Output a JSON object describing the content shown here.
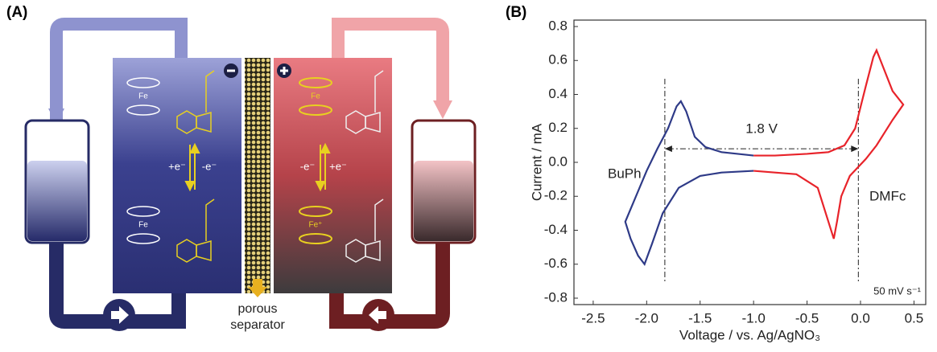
{
  "panel_a": {
    "label": "(A)",
    "left_cell": {
      "fe_top": "Fe",
      "fe_bottom": "Fe",
      "reduction": "+e⁻",
      "oxidation": "-e⁻"
    },
    "right_cell": {
      "fe_top": "Fe",
      "fe_bottom": "Fe⁺",
      "reduction": "-e⁻",
      "oxidation": "+e⁻"
    },
    "separator": [
      "porous",
      "separator"
    ]
  },
  "chart_data": {
    "type": "line",
    "panel_label": "(B)",
    "x_label": "Voltage / vs. Ag/AgNO₃",
    "y_label": "Current / mA",
    "xlim": [
      -2.68,
      0.61
    ],
    "ylim": [
      -0.8,
      0.8
    ],
    "xticks": [
      -2.5,
      {
        "value": -2,
        "label": "-2.0"
      },
      -1.5,
      {
        "value": -1,
        "label": "-1.0"
      },
      -0.5,
      {
        "value": 0,
        "label": "0.0"
      },
      0.5
    ],
    "yticks": [
      -0.8,
      -0.6,
      -0.4,
      -0.2,
      {
        "value": 0,
        "label": "0.0"
      },
      0.2,
      0.4,
      0.6,
      0.8
    ],
    "series": [
      {
        "color": "#2e3a87",
        "x": [
          -1.0,
          -1.3,
          -1.5,
          -1.7,
          -1.85,
          -1.95,
          -2.02,
          -2.08,
          -2.15,
          -2.2,
          -2.1,
          -2.0,
          -1.9,
          -1.8,
          -1.72,
          -1.68,
          -1.63,
          -1.55,
          -1.45,
          -1.3,
          -1.15,
          -1.0
        ],
        "values": [
          -0.05,
          -0.06,
          -0.08,
          -0.15,
          -0.3,
          -0.48,
          -0.6,
          -0.55,
          -0.45,
          -0.35,
          -0.2,
          -0.05,
          0.08,
          0.2,
          0.33,
          0.36,
          0.3,
          0.15,
          0.09,
          0.06,
          0.05,
          0.04
        ]
      },
      {
        "color": "#e8232a",
        "x": [
          -1.0,
          -0.8,
          -0.5,
          -0.3,
          -0.15,
          -0.05,
          0.05,
          0.12,
          0.15,
          0.2,
          0.3,
          0.4,
          0.3,
          0.15,
          0.05,
          -0.1,
          -0.18,
          -0.22,
          -0.25,
          -0.3,
          -0.4,
          -0.6,
          -1.0
        ],
        "values": [
          0.04,
          0.04,
          0.05,
          0.06,
          0.1,
          0.2,
          0.45,
          0.62,
          0.66,
          0.58,
          0.42,
          0.34,
          0.25,
          0.1,
          0.02,
          -0.08,
          -0.2,
          -0.35,
          -0.45,
          -0.35,
          -0.15,
          -0.07,
          -0.05
        ]
      }
    ],
    "reference_lines": {
      "x": [
        -1.83,
        -0.02
      ],
      "arrow_y": 0.08
    },
    "annotations": {
      "gap": "1.8 V",
      "left": "BuPh",
      "right": "DMFc",
      "scan_rate": "50 mV s⁻¹"
    }
  }
}
